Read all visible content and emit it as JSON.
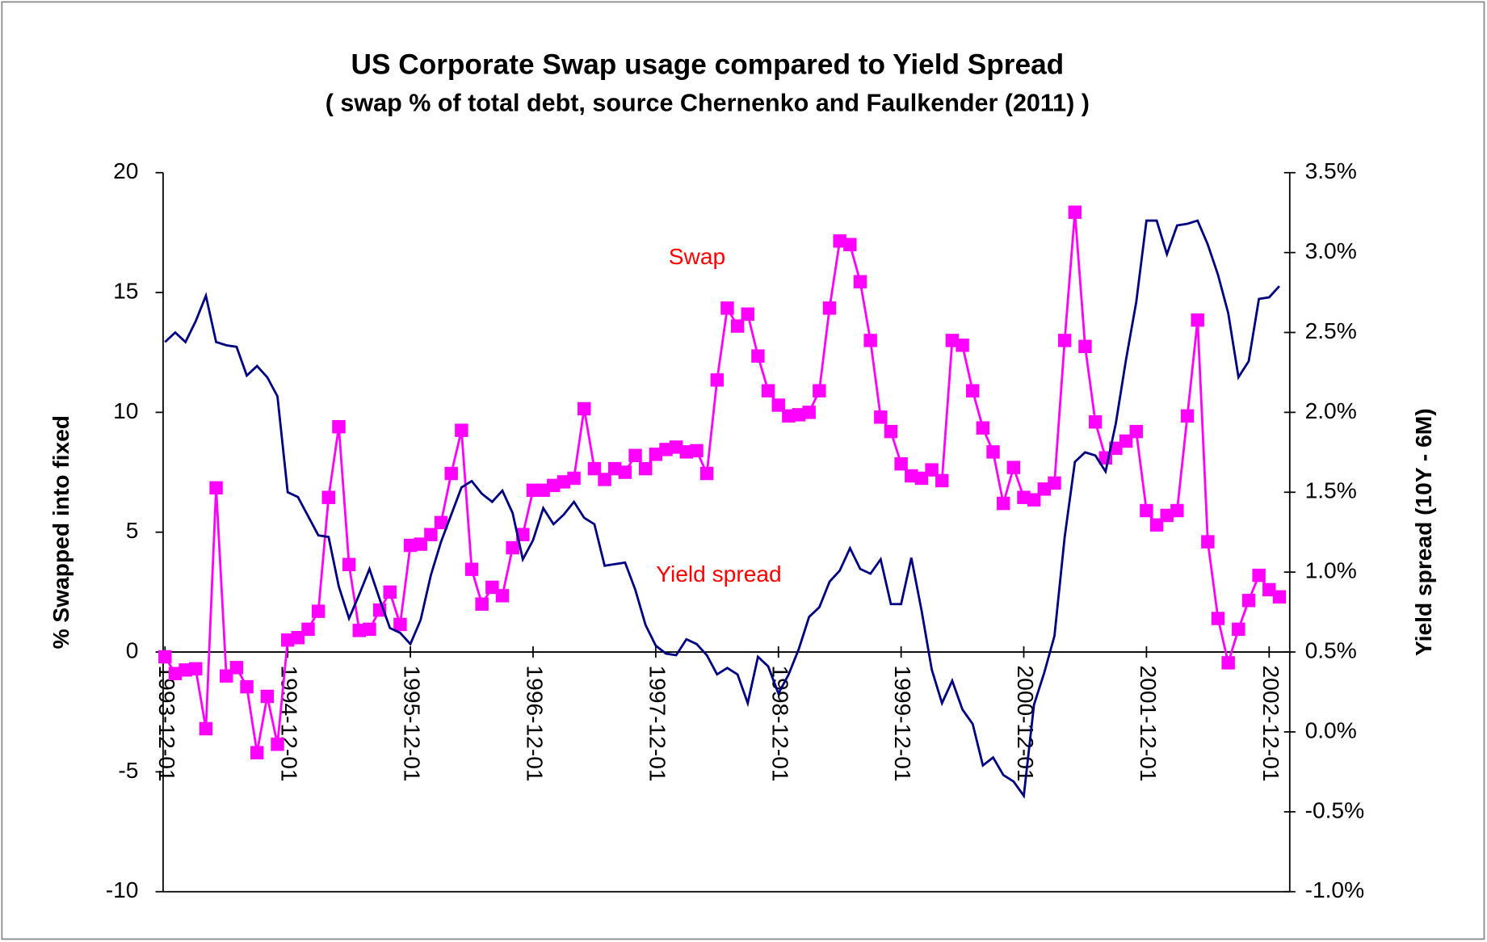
{
  "chart_data": {
    "type": "line",
    "title": "US Corporate Swap usage compared to Yield Spread",
    "subtitle": "( swap % of total debt, source Chernenko and Faulkender (2011) )",
    "y_label": "% Swapped into fixed",
    "y2_label": "Yield spread (10Y - 6M)",
    "annotations": [
      "Swap",
      "Yield spread"
    ],
    "annotation_color": "#ff0000",
    "categories": [
      "1993-12-01",
      null,
      null,
      null,
      null,
      null,
      null,
      null,
      null,
      null,
      null,
      null,
      "1994-12-01",
      null,
      null,
      null,
      null,
      null,
      null,
      null,
      null,
      null,
      null,
      null,
      "1995-12-01",
      null,
      null,
      null,
      null,
      null,
      null,
      null,
      null,
      null,
      null,
      null,
      "1996-12-01",
      null,
      null,
      null,
      null,
      null,
      null,
      null,
      null,
      null,
      null,
      null,
      "1997-12-01",
      null,
      null,
      null,
      null,
      null,
      null,
      null,
      null,
      null,
      null,
      null,
      "1998-12-01",
      null,
      null,
      null,
      null,
      null,
      null,
      null,
      null,
      null,
      null,
      null,
      "1999-12-01",
      null,
      null,
      null,
      null,
      null,
      null,
      null,
      null,
      null,
      null,
      null,
      "2000-12-01",
      null,
      null,
      null,
      null,
      null,
      null,
      null,
      null,
      null,
      null,
      null,
      "2001-12-01",
      null,
      null,
      null,
      null,
      null,
      null,
      null,
      null,
      null,
      null,
      null,
      "2002-12-01",
      null
    ],
    "series": [
      {
        "name": "Swap",
        "color": "#ff00ff",
        "marker": "square",
        "values": [
          -0.2,
          -0.9,
          -0.75,
          -0.7,
          -3.2,
          6.85,
          -1.0,
          -0.65,
          -1.45,
          -4.2,
          -1.85,
          -3.85,
          0.5,
          0.6,
          0.95,
          1.7,
          6.45,
          9.4,
          3.65,
          0.9,
          0.95,
          1.75,
          2.5,
          1.15,
          4.45,
          4.5,
          4.9,
          5.4,
          7.45,
          9.25,
          3.45,
          2.0,
          2.7,
          2.35,
          4.35,
          4.9,
          6.75,
          6.75,
          6.95,
          7.1,
          7.25,
          10.15,
          7.65,
          7.2,
          7.65,
          7.5,
          8.2,
          7.65,
          8.25,
          8.45,
          8.55,
          8.35,
          8.4,
          7.45,
          11.35,
          14.35,
          13.6,
          14.1,
          12.35,
          10.9,
          10.3,
          9.85,
          9.9,
          10.0,
          10.9,
          14.35,
          17.15,
          17.0,
          15.45,
          13.0,
          9.8,
          9.2,
          7.85,
          7.35,
          7.25,
          7.6,
          7.15,
          13.0,
          12.8,
          10.9,
          9.35,
          8.35,
          6.2,
          7.7,
          6.45,
          6.35,
          6.8,
          7.05,
          13.0,
          18.35,
          12.75,
          9.6,
          8.1,
          8.5,
          8.8,
          9.2,
          5.9,
          5.3,
          5.7,
          5.9,
          9.85,
          13.85,
          4.6,
          1.4,
          -0.45,
          0.95,
          2.15,
          3.2,
          2.6,
          2.3
        ]
      },
      {
        "name": "Yield spread",
        "color": "#000080",
        "axis": "y2",
        "values": [
          2.44,
          2.5,
          2.44,
          2.57,
          2.73,
          2.44,
          2.42,
          2.41,
          2.23,
          2.29,
          2.22,
          2.1,
          1.5,
          1.47,
          1.35,
          1.23,
          1.22,
          0.91,
          0.71,
          0.86,
          1.02,
          0.83,
          0.65,
          0.62,
          0.55,
          0.7,
          0.98,
          1.19,
          1.36,
          1.53,
          1.57,
          1.49,
          1.44,
          1.51,
          1.37,
          1.08,
          1.2,
          1.4,
          1.3,
          1.36,
          1.44,
          1.34,
          1.3,
          1.04,
          1.05,
          1.06,
          0.89,
          0.67,
          0.54,
          0.49,
          0.48,
          0.58,
          0.55,
          0.48,
          0.36,
          0.4,
          0.36,
          0.18,
          0.47,
          0.41,
          0.24,
          0.36,
          0.52,
          0.72,
          0.78,
          0.94,
          1.01,
          1.15,
          1.02,
          0.99,
          1.08,
          0.8,
          0.8,
          1.09,
          0.76,
          0.39,
          0.18,
          0.32,
          0.14,
          0.05,
          -0.21,
          -0.16,
          -0.27,
          -0.31,
          -0.4,
          0.17,
          0.37,
          0.6,
          1.22,
          1.69,
          1.75,
          1.73,
          1.63,
          1.93,
          2.33,
          2.69,
          3.2,
          3.2,
          2.99,
          3.17,
          3.18,
          3.2,
          3.05,
          2.86,
          2.62,
          2.22,
          2.32,
          2.71,
          2.72,
          2.79
        ]
      }
    ],
    "ylim": [
      -10,
      20
    ],
    "yticks": [
      -10,
      -5,
      0,
      5,
      10,
      15,
      20
    ],
    "y2lim": [
      -1.0,
      3.5
    ],
    "y2ticks": [
      {
        "value": -1.0,
        "label": "-1.0%"
      },
      {
        "value": -0.5,
        "label": "-0.5%"
      },
      {
        "value": 0.0,
        "label": "0.0%"
      },
      {
        "value": 0.5,
        "label": "0.5%"
      },
      {
        "value": 1.0,
        "label": "1.0%"
      },
      {
        "value": 1.5,
        "label": "1.5%"
      },
      {
        "value": 2.0,
        "label": "2.0%"
      },
      {
        "value": 2.5,
        "label": "2.5%"
      },
      {
        "value": 3.0,
        "label": "3.0%"
      },
      {
        "value": 3.5,
        "label": "3.5%"
      }
    ],
    "grid": false
  }
}
